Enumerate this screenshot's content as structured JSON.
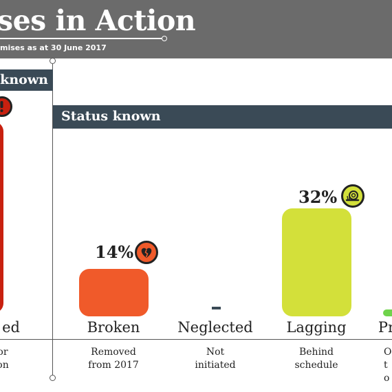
{
  "header": {
    "title": "ses in Action",
    "subtitle": "mises as at 30 June 2017"
  },
  "bands": {
    "unknown": "known",
    "known": "Status known"
  },
  "colors": {
    "header_bg": "#6b6b6b",
    "band_bg": "#3a4a56",
    "red": "#c8200f",
    "broken": "#f05a2a",
    "lagging": "#d3e03a",
    "progress": "#6fd34b"
  },
  "chart_data": {
    "type": "bar",
    "ylim": [
      0,
      50
    ],
    "categories": [
      {
        "key": "red",
        "label": "ed",
        "desc": "or\non",
        "value": null,
        "pct_label": "",
        "icon": "exclamation-icon"
      },
      {
        "key": "broken",
        "label": "Broken",
        "desc": "Removed\nfrom 2017",
        "value": 14,
        "pct_label": "14%",
        "icon": "broken-heart-icon"
      },
      {
        "key": "neglected",
        "label": "Neglected",
        "desc": "Not\ninitiated",
        "value": 0,
        "pct_label": "-",
        "icon": ""
      },
      {
        "key": "lagging",
        "label": "Lagging",
        "desc": "Behind\nschedule",
        "value": 32,
        "pct_label": "32%",
        "icon": "snail-icon"
      },
      {
        "key": "progress",
        "label": "Pr",
        "desc": "On t\no",
        "value": 2,
        "pct_label": "",
        "icon": ""
      }
    ]
  }
}
